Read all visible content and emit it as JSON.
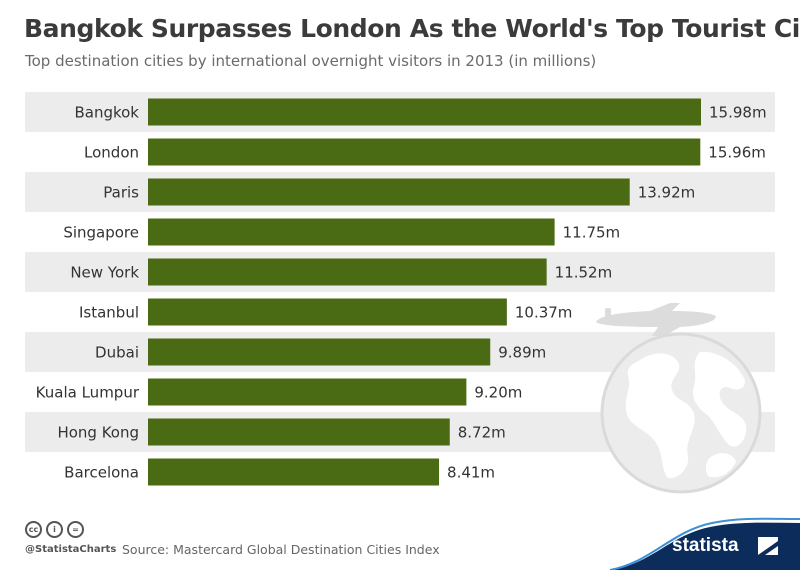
{
  "title": "Bangkok Surpasses London As the World's Top Tourist City",
  "subtitle": "Top destination cities by international overnight visitors in 2013 (in millions)",
  "chart_data": {
    "type": "bar",
    "orientation": "horizontal",
    "title": "Bangkok Surpasses London As the World's Top Tourist City",
    "subtitle": "Top destination cities by international overnight visitors in 2013 (in millions)",
    "categories": [
      "Bangkok",
      "London",
      "Paris",
      "Singapore",
      "New York",
      "Istanbul",
      "Dubai",
      "Kuala Lumpur",
      "Hong Kong",
      "Barcelona"
    ],
    "values": [
      15.98,
      15.96,
      13.92,
      11.75,
      11.52,
      10.37,
      9.89,
      9.2,
      8.72,
      8.41
    ],
    "value_labels": [
      "15.98m",
      "15.96m",
      "13.92m",
      "11.75m",
      "11.52m",
      "10.37m",
      "9.89m",
      "9.20m",
      "8.72m",
      "8.41m"
    ],
    "xlim": [
      0,
      16
    ],
    "bar_color": "#4a6b14",
    "row_band_color": "#ececec",
    "grid": false,
    "legend": "none"
  },
  "footer": {
    "cc_icons": [
      "cc-icon",
      "by-icon",
      "nd-icon"
    ],
    "cc_labels": [
      "cc",
      "i",
      "="
    ],
    "handle": "@StatistaCharts",
    "source": "Source: Mastercard Global Destination Cities Index",
    "brand": "statista",
    "brand_color": "#0c2d5c"
  },
  "decorations": [
    "airplane-icon",
    "globe-icon"
  ]
}
